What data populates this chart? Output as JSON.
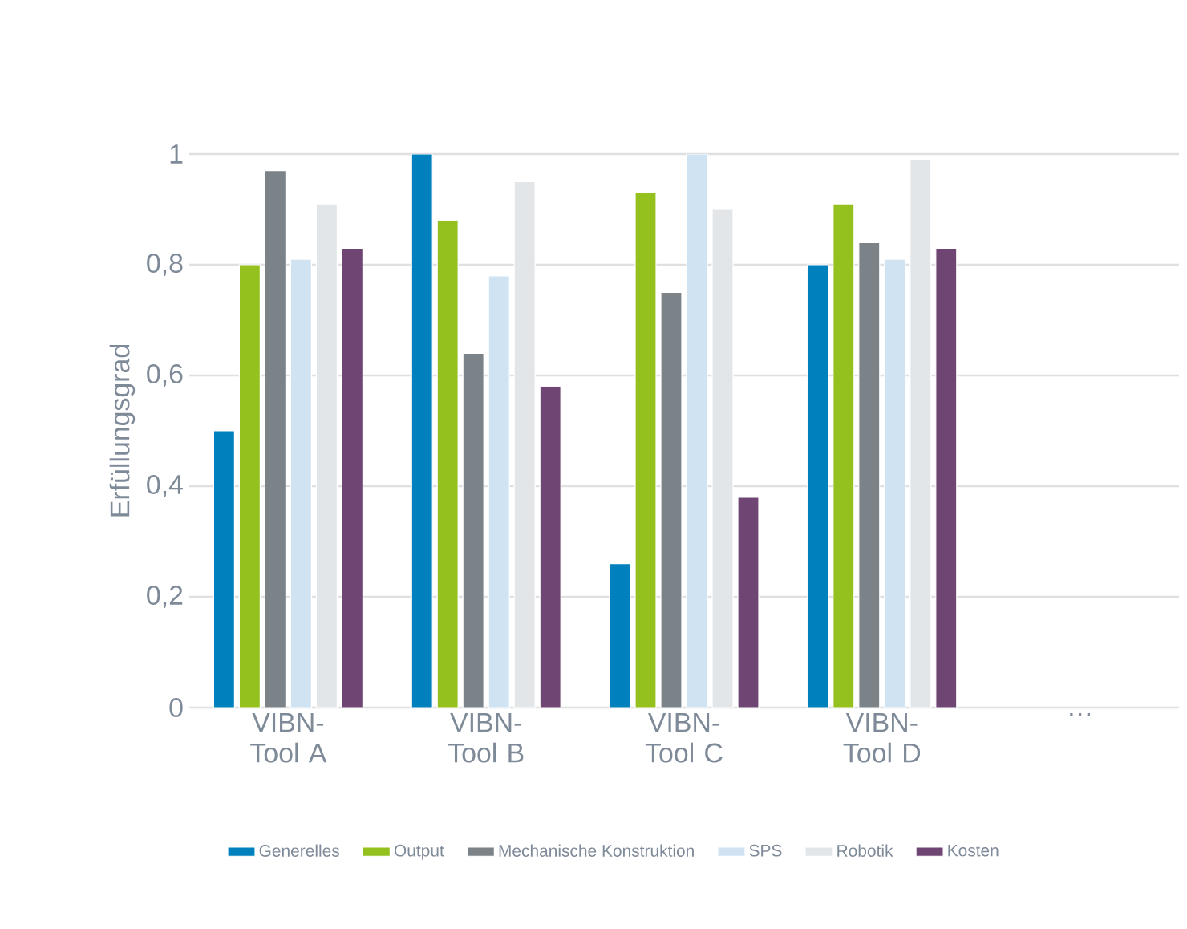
{
  "chart_data": {
    "type": "bar",
    "ylabel": "Erfüllungsgrad",
    "categories": [
      "VIBN-Tool A",
      "VIBN-Tool B",
      "VIBN-Tool C",
      "VIBN-Tool D",
      "…"
    ],
    "series": [
      {
        "name": "Generelles",
        "color": "#0080bc",
        "values": [
          0.5,
          1.0,
          0.26,
          0.8,
          null
        ]
      },
      {
        "name": "Output",
        "color": "#95c11f",
        "values": [
          0.8,
          0.88,
          0.93,
          0.91,
          null
        ]
      },
      {
        "name": "Mechanische Konstruktion",
        "color": "#7b8288",
        "values": [
          0.97,
          0.64,
          0.75,
          0.84,
          null
        ]
      },
      {
        "name": "SPS",
        "color": "#cfe3f3",
        "values": [
          0.81,
          0.78,
          1.0,
          0.81,
          null
        ]
      },
      {
        "name": "Robotik",
        "color": "#e3e6e9",
        "values": [
          0.91,
          0.95,
          0.9,
          0.99,
          null
        ]
      },
      {
        "name": "Kosten",
        "color": "#6f4673",
        "values": [
          0.83,
          0.58,
          0.38,
          0.83,
          null
        ]
      }
    ],
    "ylim": [
      0,
      1.0
    ],
    "yticks": [
      0,
      {
        "value": 0.2,
        "label": "0,2"
      },
      {
        "value": 0.4,
        "label": "0,4"
      },
      {
        "value": 0.6,
        "label": "0,6"
      },
      {
        "value": 0.8,
        "label": "0,8"
      },
      1
    ],
    "grid": "y",
    "legend": "bottom"
  }
}
